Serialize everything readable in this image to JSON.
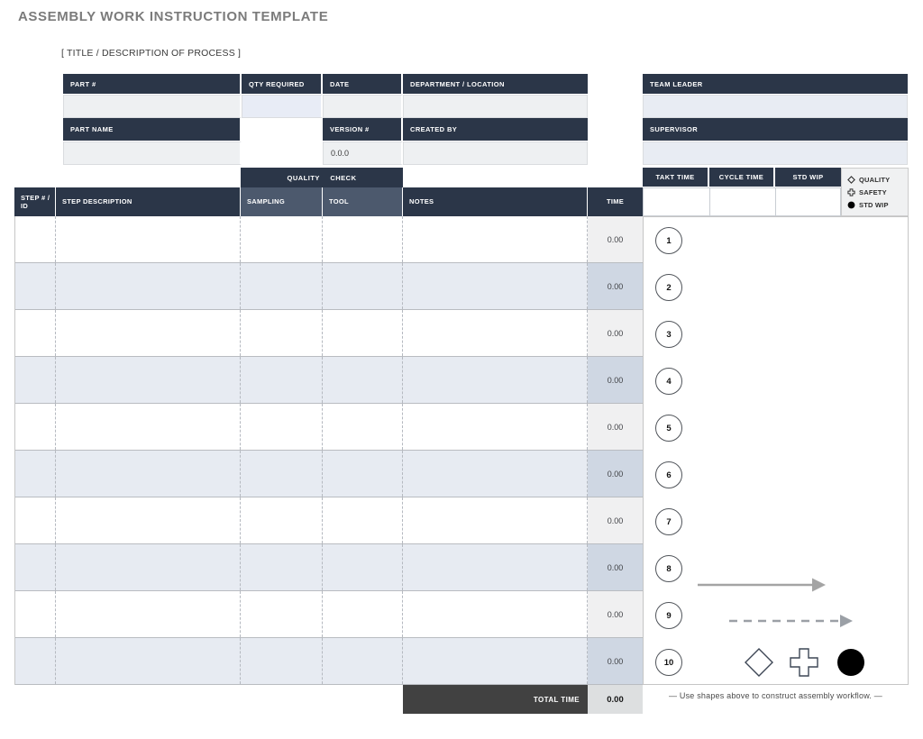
{
  "page": {
    "title": "ASSEMBLY WORK INSTRUCTION TEMPLATE",
    "process_title": "[ TITLE / DESCRIPTION OF PROCESS ]",
    "workflow_note": "— Use shapes above to construct assembly workflow. —"
  },
  "info_form": {
    "part_number": {
      "label": "PART #",
      "value": ""
    },
    "qty_required": {
      "label": "QTY REQUIRED",
      "value": ""
    },
    "date": {
      "label": "DATE",
      "value": ""
    },
    "department": {
      "label": "DEPARTMENT / LOCATION",
      "value": ""
    },
    "part_name": {
      "label": "PART NAME",
      "value": ""
    },
    "version": {
      "label": "VERSION #",
      "value": "0.0.0"
    },
    "created_by": {
      "label": "CREATED BY",
      "value": ""
    },
    "team_leader": {
      "label": "TEAM LEADER",
      "value": ""
    },
    "supervisor": {
      "label": "SUPERVISOR",
      "value": ""
    }
  },
  "metrics": {
    "takt_time": {
      "label": "TAKT TIME",
      "value": ""
    },
    "cycle_time": {
      "label": "CYCLE TIME",
      "value": ""
    },
    "std_wip": {
      "label": "STD WIP",
      "value": ""
    }
  },
  "legend": {
    "items": [
      {
        "icon": "diamond-outline-icon",
        "label": "QUALITY"
      },
      {
        "icon": "cross-outline-icon",
        "label": "SAFETY"
      },
      {
        "icon": "filled-circle-icon",
        "label": "STD WIP"
      }
    ]
  },
  "steps_table": {
    "group_header": "QUALITY CHECK",
    "columns": [
      "STEP # / ID",
      "STEP DESCRIPTION",
      "SAMPLING",
      "TOOL",
      "NOTES",
      "TIME"
    ],
    "rows": [
      {
        "step_id": "",
        "description": "",
        "sampling": "",
        "tool": "",
        "notes": "",
        "time": "0.00"
      },
      {
        "step_id": "",
        "description": "",
        "sampling": "",
        "tool": "",
        "notes": "",
        "time": "0.00"
      },
      {
        "step_id": "",
        "description": "",
        "sampling": "",
        "tool": "",
        "notes": "",
        "time": "0.00"
      },
      {
        "step_id": "",
        "description": "",
        "sampling": "",
        "tool": "",
        "notes": "",
        "time": "0.00"
      },
      {
        "step_id": "",
        "description": "",
        "sampling": "",
        "tool": "",
        "notes": "",
        "time": "0.00"
      },
      {
        "step_id": "",
        "description": "",
        "sampling": "",
        "tool": "",
        "notes": "",
        "time": "0.00"
      },
      {
        "step_id": "",
        "description": "",
        "sampling": "",
        "tool": "",
        "notes": "",
        "time": "0.00"
      },
      {
        "step_id": "",
        "description": "",
        "sampling": "",
        "tool": "",
        "notes": "",
        "time": "0.00"
      },
      {
        "step_id": "",
        "description": "",
        "sampling": "",
        "tool": "",
        "notes": "",
        "time": "0.00"
      },
      {
        "step_id": "",
        "description": "",
        "sampling": "",
        "tool": "",
        "notes": "",
        "time": "0.00"
      }
    ],
    "total": {
      "label": "TOTAL TIME",
      "value": "0.00"
    }
  },
  "workflow_panel": {
    "step_numbers": [
      "1",
      "2",
      "3",
      "4",
      "5",
      "6",
      "7",
      "8",
      "9",
      "10"
    ],
    "shapes": [
      "solid-arrow",
      "dashed-arrow",
      "diamond-outline",
      "cross-outline",
      "filled-circle"
    ]
  },
  "colors": {
    "header_navy": "#2b3648",
    "header_slate": "#4c596d",
    "row_alt_blue": "#e7ebf2",
    "time_cell_light": "#f0f0f1",
    "time_cell_blue": "#cfd7e3",
    "value_cell_gray": "#eef0f2",
    "value_cell_blue": "#e8ecf6",
    "total_bar_gray": "#414141",
    "title_gray": "#7b7b7b",
    "arrow_gray": "#a4a4a4"
  }
}
